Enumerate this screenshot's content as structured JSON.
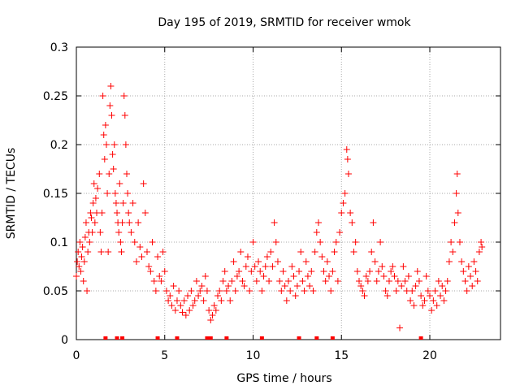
{
  "chart_data": {
    "type": "scatter",
    "title": "Day 195 of 2019, SRMTID for receiver wmok",
    "xlabel": "GPS time / hours",
    "ylabel": "SRMTID / TECUs",
    "xlim": [
      0,
      24
    ],
    "ylim": [
      0,
      0.3
    ],
    "xticks": [
      0,
      5,
      10,
      15,
      20
    ],
    "xtick_labels": [
      "0",
      "5",
      "10",
      "15",
      "20"
    ],
    "yticks": [
      0,
      0.05,
      0.1,
      0.15,
      0.2,
      0.25,
      0.3
    ],
    "ytick_labels": [
      "0",
      "0.05",
      "0.1",
      "0.15",
      "0.2",
      "0.25",
      "0.3"
    ],
    "grid": true,
    "marker": "+",
    "color": "#ff0000",
    "series": [
      {
        "name": "SRMTID",
        "points": [
          [
            0.0,
            0.065
          ],
          [
            0.05,
            0.08
          ],
          [
            0.1,
            0.09
          ],
          [
            0.15,
            0.075
          ],
          [
            0.2,
            0.1
          ],
          [
            0.25,
            0.07
          ],
          [
            0.3,
            0.085
          ],
          [
            0.35,
            0.095
          ],
          [
            0.4,
            0.06
          ],
          [
            0.45,
            0.08
          ],
          [
            0.5,
            0.105
          ],
          [
            0.55,
            0.12
          ],
          [
            0.6,
            0.05
          ],
          [
            0.65,
            0.09
          ],
          [
            0.7,
            0.11
          ],
          [
            0.75,
            0.1
          ],
          [
            0.8,
            0.13
          ],
          [
            0.85,
            0.125
          ],
          [
            0.9,
            0.11
          ],
          [
            0.95,
            0.14
          ],
          [
            1.0,
            0.16
          ],
          [
            1.05,
            0.12
          ],
          [
            1.1,
            0.145
          ],
          [
            1.15,
            0.13
          ],
          [
            1.2,
            0.155
          ],
          [
            1.3,
            0.17
          ],
          [
            1.35,
            0.11
          ],
          [
            1.4,
            0.09
          ],
          [
            1.45,
            0.13
          ],
          [
            1.5,
            0.25
          ],
          [
            1.55,
            0.21
          ],
          [
            1.6,
            0.185
          ],
          [
            1.65,
            0.22
          ],
          [
            1.7,
            0.2
          ],
          [
            1.75,
            0.15
          ],
          [
            1.8,
            0.09
          ],
          [
            1.85,
            0.17
          ],
          [
            1.9,
            0.24
          ],
          [
            1.95,
            0.26
          ],
          [
            2.0,
            0.23
          ],
          [
            2.05,
            0.19
          ],
          [
            2.1,
            0.175
          ],
          [
            2.15,
            0.2
          ],
          [
            2.2,
            0.15
          ],
          [
            2.25,
            0.14
          ],
          [
            2.3,
            0.13
          ],
          [
            2.35,
            0.12
          ],
          [
            2.4,
            0.11
          ],
          [
            2.45,
            0.16
          ],
          [
            2.5,
            0.1
          ],
          [
            2.55,
            0.09
          ],
          [
            2.6,
            0.12
          ],
          [
            2.65,
            0.14
          ],
          [
            2.7,
            0.25
          ],
          [
            2.75,
            0.23
          ],
          [
            2.8,
            0.2
          ],
          [
            2.85,
            0.17
          ],
          [
            2.9,
            0.15
          ],
          [
            2.95,
            0.13
          ],
          [
            3.0,
            0.12
          ],
          [
            3.1,
            0.11
          ],
          [
            3.2,
            0.14
          ],
          [
            3.3,
            0.1
          ],
          [
            3.4,
            0.08
          ],
          [
            3.5,
            0.12
          ],
          [
            3.6,
            0.095
          ],
          [
            3.7,
            0.085
          ],
          [
            3.8,
            0.16
          ],
          [
            3.9,
            0.13
          ],
          [
            4.0,
            0.09
          ],
          [
            4.1,
            0.075
          ],
          [
            4.2,
            0.07
          ],
          [
            4.3,
            0.1
          ],
          [
            4.4,
            0.06
          ],
          [
            4.5,
            0.05
          ],
          [
            4.6,
            0.085
          ],
          [
            4.7,
            0.065
          ],
          [
            4.8,
            0.06
          ],
          [
            4.9,
            0.09
          ],
          [
            5.0,
            0.07
          ],
          [
            5.1,
            0.05
          ],
          [
            5.2,
            0.04
          ],
          [
            5.3,
            0.045
          ],
          [
            5.4,
            0.035
          ],
          [
            5.5,
            0.055
          ],
          [
            5.6,
            0.03
          ],
          [
            5.7,
            0.04
          ],
          [
            5.8,
            0.05
          ],
          [
            5.9,
            0.035
          ],
          [
            6.0,
            0.028
          ],
          [
            6.1,
            0.04
          ],
          [
            6.2,
            0.025
          ],
          [
            6.3,
            0.045
          ],
          [
            6.4,
            0.03
          ],
          [
            6.5,
            0.05
          ],
          [
            6.6,
            0.035
          ],
          [
            6.7,
            0.04
          ],
          [
            6.8,
            0.06
          ],
          [
            6.9,
            0.045
          ],
          [
            7.0,
            0.05
          ],
          [
            7.1,
            0.055
          ],
          [
            7.2,
            0.04
          ],
          [
            7.3,
            0.065
          ],
          [
            7.4,
            0.05
          ],
          [
            7.5,
            0.03
          ],
          [
            7.6,
            0.02
          ],
          [
            7.7,
            0.025
          ],
          [
            7.8,
            0.035
          ],
          [
            7.9,
            0.03
          ],
          [
            8.0,
            0.045
          ],
          [
            8.1,
            0.05
          ],
          [
            8.2,
            0.04
          ],
          [
            8.3,
            0.06
          ],
          [
            8.4,
            0.07
          ],
          [
            8.5,
            0.05
          ],
          [
            8.6,
            0.055
          ],
          [
            8.7,
            0.04
          ],
          [
            8.8,
            0.06
          ],
          [
            8.9,
            0.08
          ],
          [
            9.0,
            0.05
          ],
          [
            9.1,
            0.065
          ],
          [
            9.2,
            0.07
          ],
          [
            9.3,
            0.09
          ],
          [
            9.4,
            0.06
          ],
          [
            9.5,
            0.055
          ],
          [
            9.6,
            0.075
          ],
          [
            9.7,
            0.085
          ],
          [
            9.8,
            0.05
          ],
          [
            9.9,
            0.07
          ],
          [
            10.0,
            0.1
          ],
          [
            10.1,
            0.075
          ],
          [
            10.2,
            0.06
          ],
          [
            10.3,
            0.08
          ],
          [
            10.4,
            0.07
          ],
          [
            10.5,
            0.05
          ],
          [
            10.6,
            0.065
          ],
          [
            10.7,
            0.075
          ],
          [
            10.8,
            0.085
          ],
          [
            10.9,
            0.06
          ],
          [
            11.0,
            0.09
          ],
          [
            11.1,
            0.075
          ],
          [
            11.2,
            0.12
          ],
          [
            11.3,
            0.1
          ],
          [
            11.4,
            0.08
          ],
          [
            11.5,
            0.06
          ],
          [
            11.6,
            0.05
          ],
          [
            11.7,
            0.07
          ],
          [
            11.8,
            0.055
          ],
          [
            11.9,
            0.04
          ],
          [
            12.0,
            0.06
          ],
          [
            12.1,
            0.05
          ],
          [
            12.2,
            0.075
          ],
          [
            12.3,
            0.065
          ],
          [
            12.4,
            0.045
          ],
          [
            12.5,
            0.055
          ],
          [
            12.6,
            0.07
          ],
          [
            12.7,
            0.09
          ],
          [
            12.8,
            0.06
          ],
          [
            12.9,
            0.05
          ],
          [
            13.0,
            0.08
          ],
          [
            13.1,
            0.065
          ],
          [
            13.2,
            0.055
          ],
          [
            13.3,
            0.07
          ],
          [
            13.4,
            0.05
          ],
          [
            13.5,
            0.09
          ],
          [
            13.6,
            0.11
          ],
          [
            13.7,
            0.12
          ],
          [
            13.8,
            0.1
          ],
          [
            13.9,
            0.085
          ],
          [
            14.0,
            0.07
          ],
          [
            14.1,
            0.06
          ],
          [
            14.2,
            0.08
          ],
          [
            14.3,
            0.065
          ],
          [
            14.4,
            0.05
          ],
          [
            14.5,
            0.07
          ],
          [
            14.6,
            0.09
          ],
          [
            14.7,
            0.1
          ],
          [
            14.8,
            0.06
          ],
          [
            14.9,
            0.11
          ],
          [
            15.0,
            0.13
          ],
          [
            15.1,
            0.14
          ],
          [
            15.2,
            0.15
          ],
          [
            15.3,
            0.195
          ],
          [
            15.35,
            0.185
          ],
          [
            15.4,
            0.17
          ],
          [
            15.5,
            0.13
          ],
          [
            15.6,
            0.12
          ],
          [
            15.7,
            0.09
          ],
          [
            15.8,
            0.1
          ],
          [
            15.9,
            0.07
          ],
          [
            16.0,
            0.06
          ],
          [
            16.1,
            0.055
          ],
          [
            16.2,
            0.05
          ],
          [
            16.3,
            0.045
          ],
          [
            16.4,
            0.065
          ],
          [
            16.5,
            0.06
          ],
          [
            16.6,
            0.07
          ],
          [
            16.7,
            0.09
          ],
          [
            16.8,
            0.12
          ],
          [
            16.9,
            0.08
          ],
          [
            17.0,
            0.06
          ],
          [
            17.1,
            0.07
          ],
          [
            17.2,
            0.1
          ],
          [
            17.3,
            0.075
          ],
          [
            17.4,
            0.065
          ],
          [
            17.5,
            0.05
          ],
          [
            17.6,
            0.045
          ],
          [
            17.7,
            0.06
          ],
          [
            17.8,
            0.07
          ],
          [
            17.9,
            0.075
          ],
          [
            18.0,
            0.065
          ],
          [
            18.1,
            0.05
          ],
          [
            18.2,
            0.06
          ],
          [
            18.3,
            0.012
          ],
          [
            18.4,
            0.055
          ],
          [
            18.5,
            0.075
          ],
          [
            18.6,
            0.06
          ],
          [
            18.7,
            0.05
          ],
          [
            18.8,
            0.065
          ],
          [
            18.9,
            0.04
          ],
          [
            19.0,
            0.05
          ],
          [
            19.1,
            0.035
          ],
          [
            19.2,
            0.055
          ],
          [
            19.3,
            0.07
          ],
          [
            19.4,
            0.06
          ],
          [
            19.5,
            0.045
          ],
          [
            19.6,
            0.035
          ],
          [
            19.7,
            0.04
          ],
          [
            19.8,
            0.065
          ],
          [
            19.9,
            0.05
          ],
          [
            20.0,
            0.045
          ],
          [
            20.1,
            0.03
          ],
          [
            20.2,
            0.04
          ],
          [
            20.3,
            0.05
          ],
          [
            20.4,
            0.035
          ],
          [
            20.5,
            0.06
          ],
          [
            20.6,
            0.045
          ],
          [
            20.7,
            0.055
          ],
          [
            20.8,
            0.04
          ],
          [
            20.9,
            0.05
          ],
          [
            21.0,
            0.06
          ],
          [
            21.1,
            0.08
          ],
          [
            21.2,
            0.1
          ],
          [
            21.3,
            0.09
          ],
          [
            21.4,
            0.12
          ],
          [
            21.5,
            0.15
          ],
          [
            21.55,
            0.17
          ],
          [
            21.6,
            0.13
          ],
          [
            21.7,
            0.1
          ],
          [
            21.8,
            0.08
          ],
          [
            21.9,
            0.07
          ],
          [
            22.0,
            0.06
          ],
          [
            22.1,
            0.05
          ],
          [
            22.2,
            0.075
          ],
          [
            22.3,
            0.065
          ],
          [
            22.4,
            0.055
          ],
          [
            22.5,
            0.08
          ],
          [
            22.6,
            0.07
          ],
          [
            22.7,
            0.06
          ],
          [
            22.8,
            0.09
          ],
          [
            22.9,
            0.1
          ],
          [
            22.95,
            0.095
          ]
        ]
      }
    ],
    "baseline_marks_x": [
      1.65,
      2.3,
      2.6,
      4.6,
      5.7,
      7.4,
      7.6,
      8.5,
      10.5,
      12.6,
      13.6,
      14.5,
      19.5
    ]
  }
}
